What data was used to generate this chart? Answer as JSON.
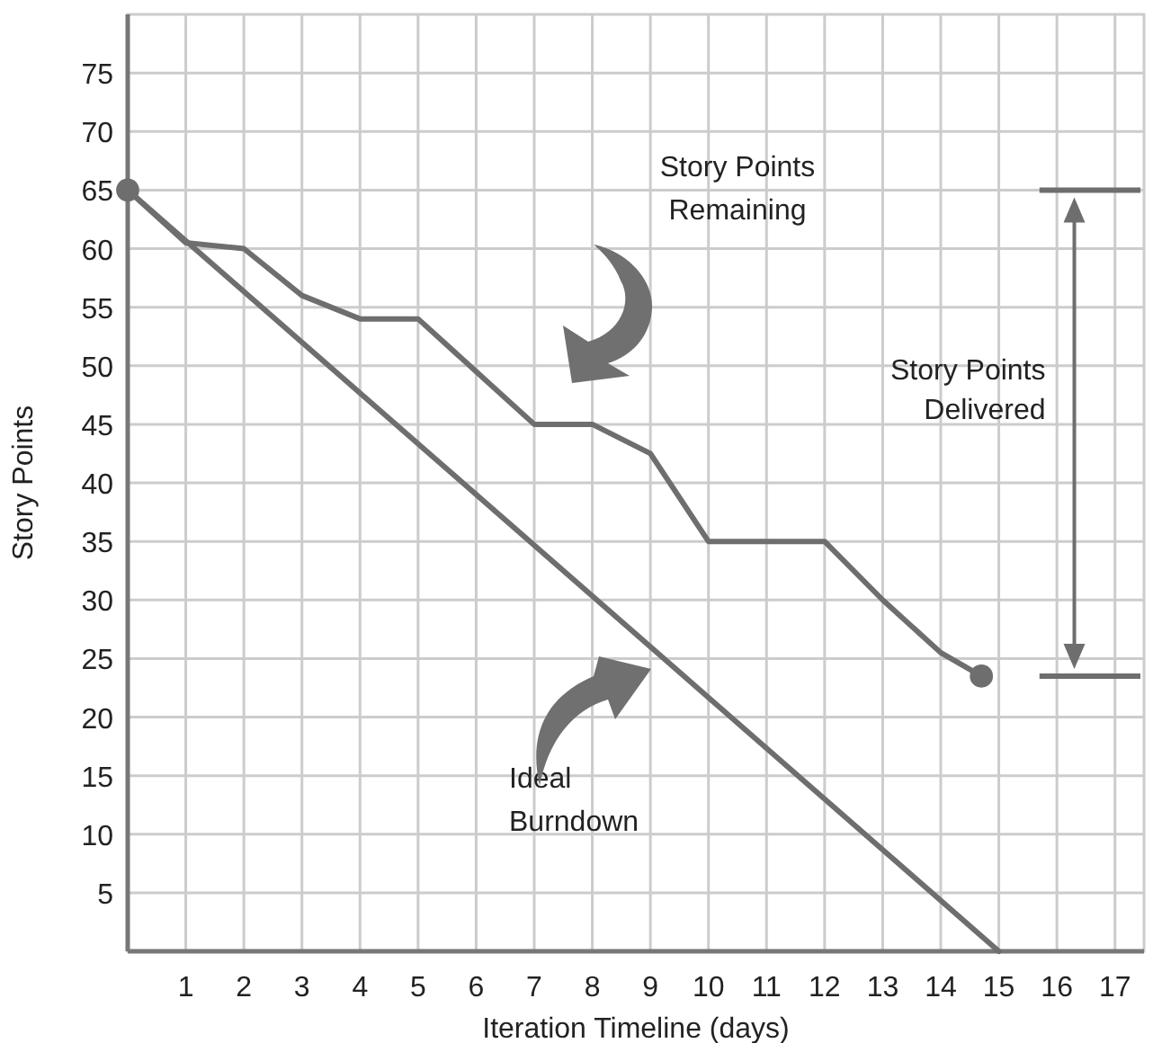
{
  "chart_data": {
    "type": "line",
    "xlabel": "Iteration Timeline (days)",
    "ylabel": "Story Points",
    "xlim": [
      0,
      17.5
    ],
    "ylim": [
      0,
      80
    ],
    "xticks": [
      1,
      2,
      3,
      4,
      5,
      6,
      7,
      8,
      9,
      10,
      11,
      12,
      13,
      14,
      15,
      16,
      17
    ],
    "yticks": [
      5,
      10,
      15,
      20,
      25,
      30,
      35,
      40,
      45,
      50,
      55,
      60,
      65,
      70,
      75
    ],
    "grid": true,
    "series": [
      {
        "color": "#6e6e6e",
        "x": [
          0,
          1,
          2,
          3,
          4,
          5,
          6,
          7,
          8,
          9,
          10,
          11,
          12,
          13,
          14,
          14.7
        ],
        "values": [
          65,
          60.5,
          60,
          56,
          54,
          54,
          49.5,
          45,
          45,
          42.5,
          35,
          35,
          35,
          30,
          25.5,
          23.5
        ]
      },
      {
        "color": "#6e6e6e",
        "x": [
          0,
          15
        ],
        "values": [
          65,
          0
        ]
      },
      {
        "type": "scatter",
        "color": "#6e6e6e",
        "marker": "circle",
        "x": [
          0,
          14.7
        ],
        "values": [
          65,
          23.5
        ]
      }
    ],
    "ref_lines": [
      {
        "axis": "y",
        "value": 65,
        "color": "#6e6e6e"
      },
      {
        "axis": "y",
        "value": 23.5,
        "color": "#6e6e6e"
      }
    ],
    "annotations": [
      "Story Points Remaining",
      "Ideal Burndown",
      "Story Points Delivered"
    ]
  }
}
